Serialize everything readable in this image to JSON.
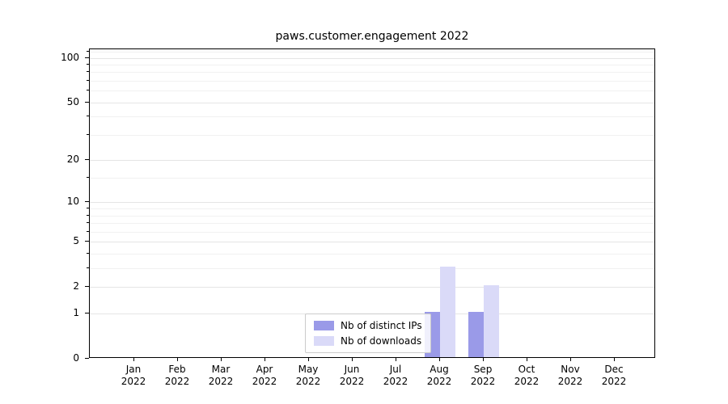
{
  "title": "paws.customer.engagement 2022",
  "chart_data": {
    "type": "bar",
    "title": "paws.customer.engagement 2022",
    "categories": [
      "Jan 2022",
      "Feb 2022",
      "Mar 2022",
      "Apr 2022",
      "May 2022",
      "Jun 2022",
      "Jul 2022",
      "Aug 2022",
      "Sep 2022",
      "Oct 2022",
      "Nov 2022",
      "Dec 2022"
    ],
    "series": [
      {
        "name": "Nb of distinct IPs",
        "color": "#9a9ae8",
        "values": [
          0,
          0,
          0,
          0,
          0,
          0,
          0,
          1,
          1,
          0,
          0,
          0
        ]
      },
      {
        "name": "Nb of downloads",
        "color": "#dadaf8",
        "values": [
          0,
          0,
          0,
          0,
          0,
          0,
          0,
          3,
          2,
          0,
          0,
          0
        ]
      }
    ],
    "xlabel": "",
    "ylabel": "",
    "yscale": "log1p",
    "yticks": [
      0,
      1,
      2,
      5,
      10,
      20,
      50,
      100
    ],
    "minor_yticks": [
      3,
      4,
      6,
      7,
      8,
      9,
      15,
      30,
      40,
      60,
      70,
      80,
      90,
      110
    ],
    "ymax": 114,
    "grid": true,
    "legend": {
      "position": "lower-center-inside",
      "entries": [
        "Nb of distinct IPs",
        "Nb of downloads"
      ]
    },
    "colors": {
      "grid_major": "#e5e5e5",
      "grid_minor": "#f1f1f1",
      "spine": "#000000"
    }
  }
}
